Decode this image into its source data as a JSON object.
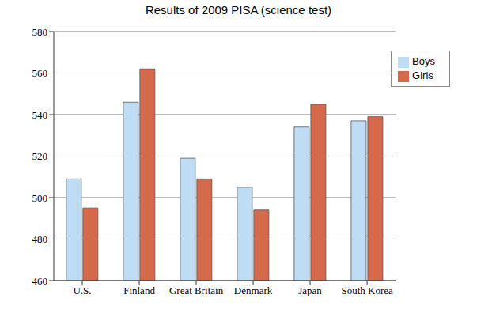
{
  "chart_data": {
    "type": "bar",
    "title": "Results of 2009 PISA (science test)",
    "categories": [
      "U.S.",
      "Finland",
      "Great Britain",
      "Denmark",
      "Japan",
      "South Korea"
    ],
    "series": [
      {
        "name": "Boys",
        "color": "#bfdcf5",
        "values": [
          509,
          546,
          519,
          505,
          534,
          537
        ]
      },
      {
        "name": "Girls",
        "color": "#d4694b",
        "values": [
          495,
          562,
          509,
          494,
          545,
          539
        ]
      }
    ],
    "ylim": [
      460,
      580
    ],
    "yticks": [
      460,
      480,
      500,
      520,
      540,
      560,
      580
    ],
    "grid": true,
    "legend": "top-right"
  }
}
